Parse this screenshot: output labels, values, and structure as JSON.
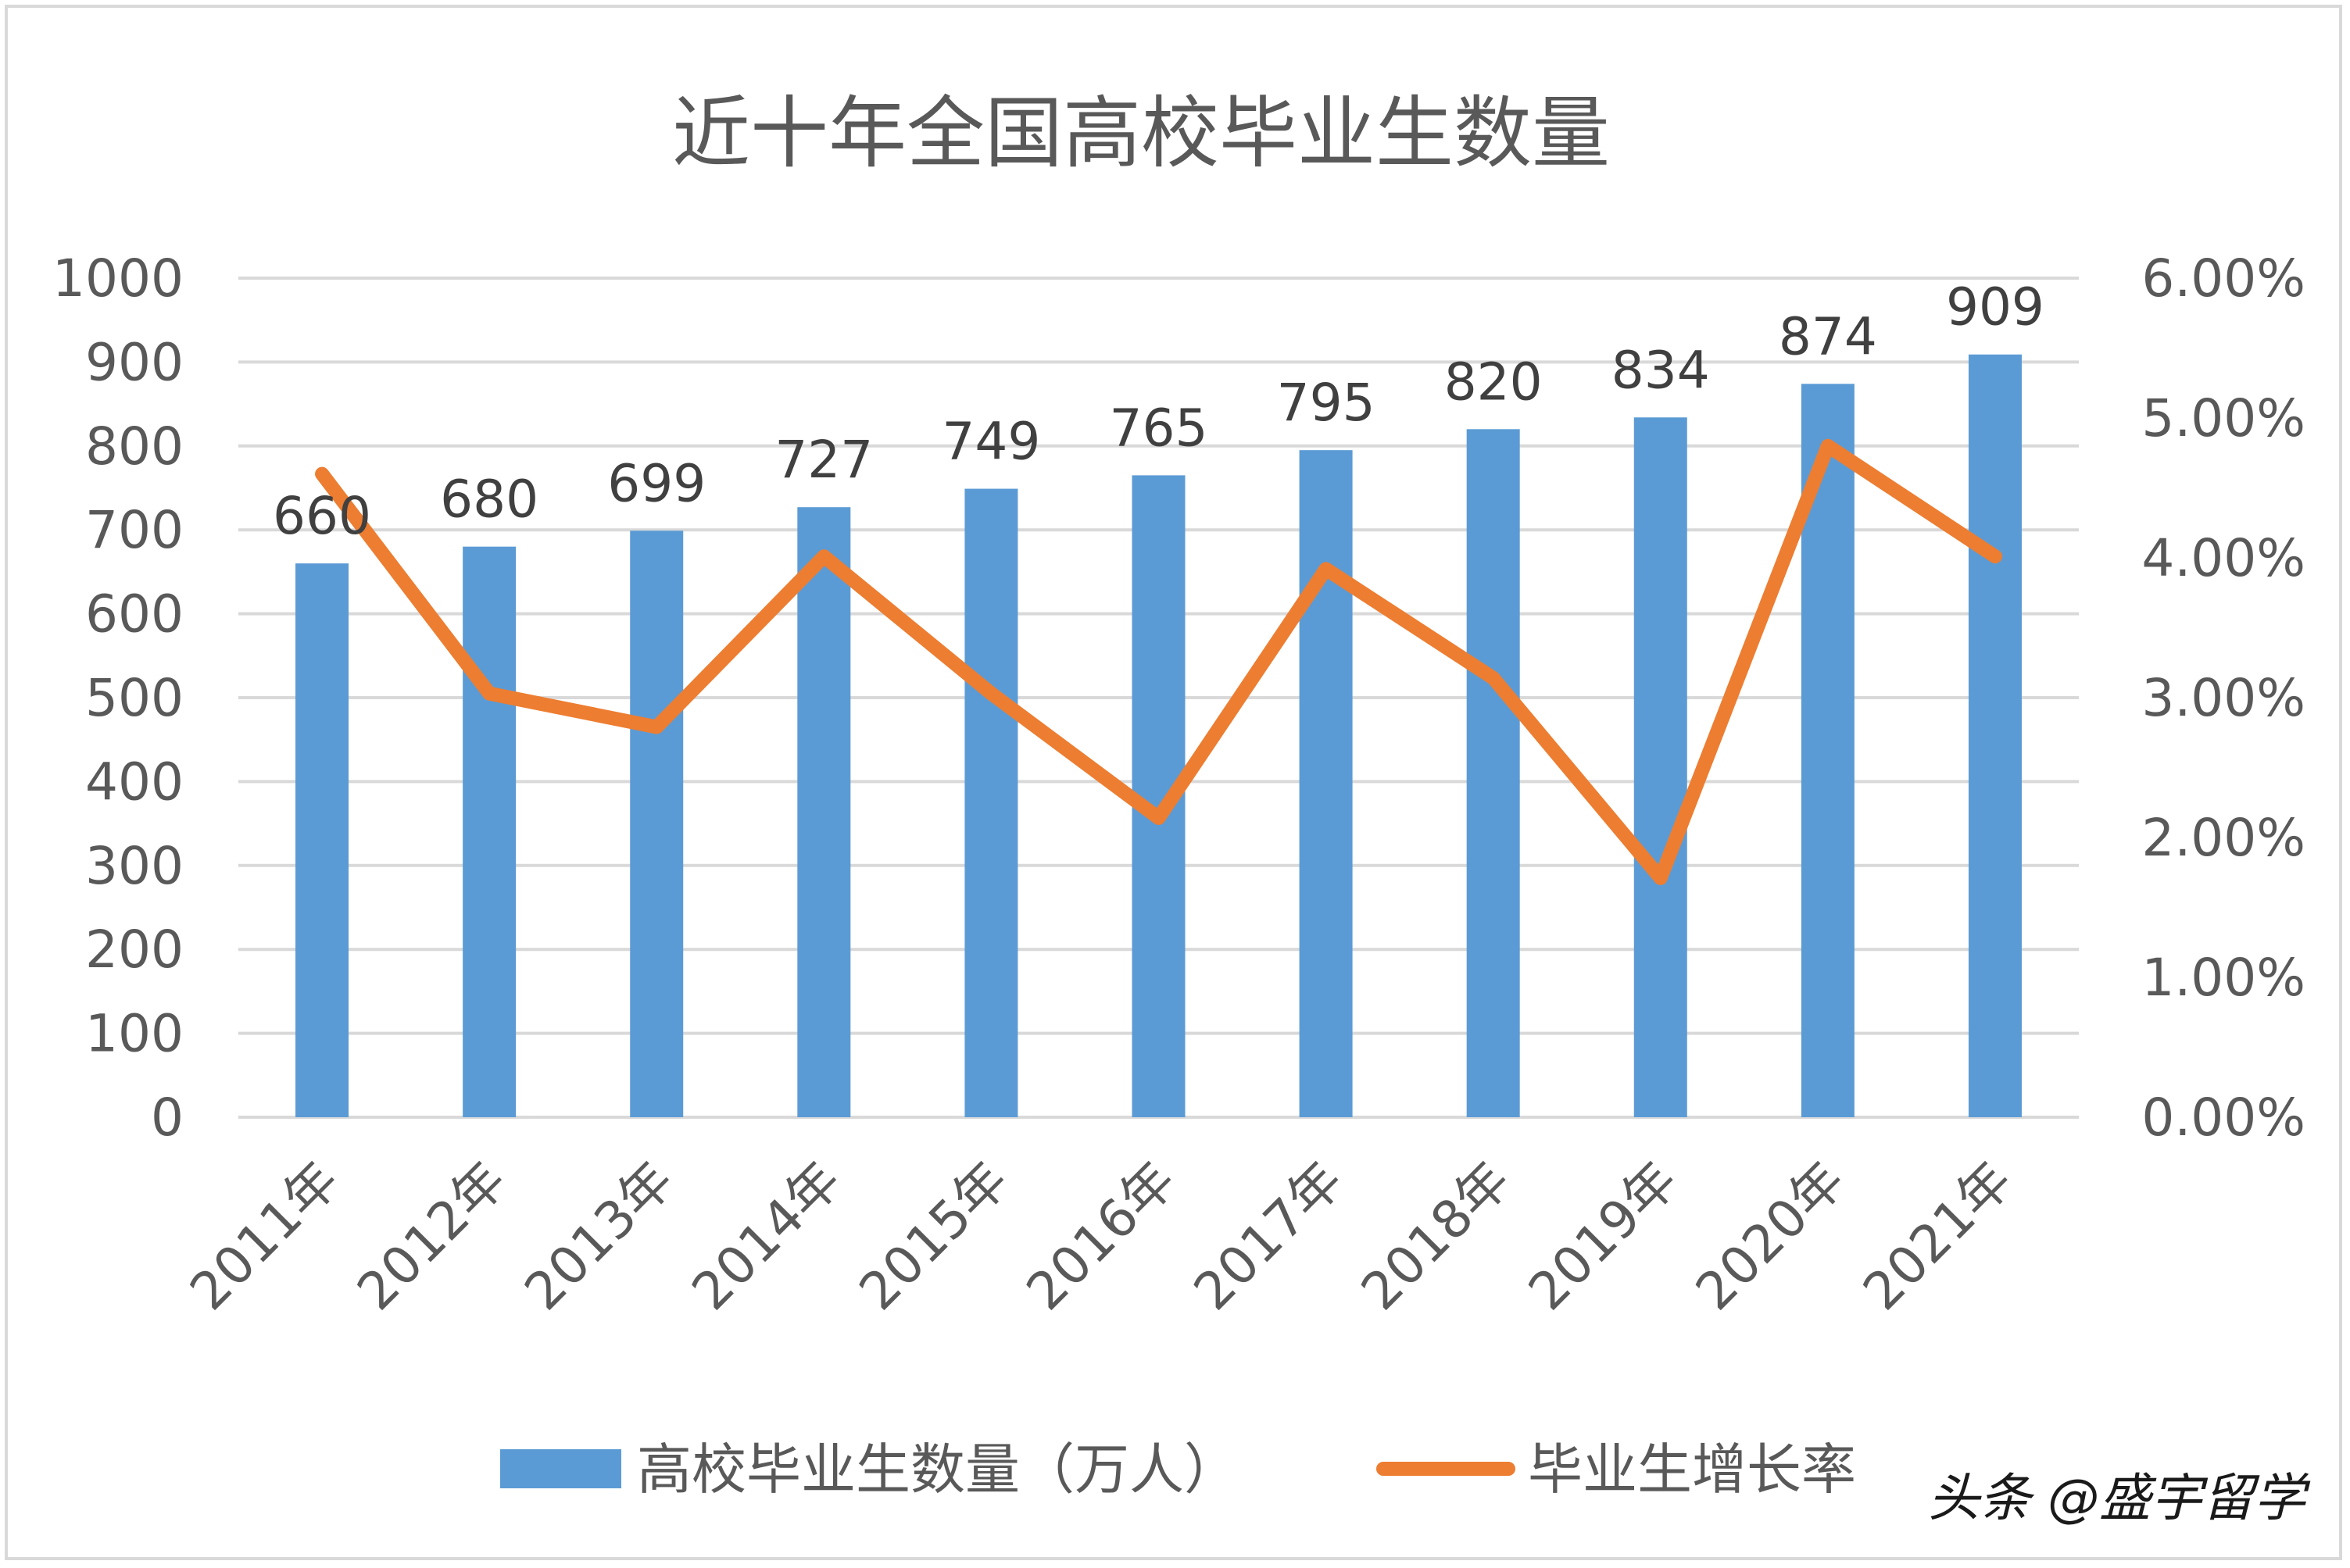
{
  "chart_data": {
    "type": "bar",
    "title": "近十年全国高校毕业生数量",
    "categories": [
      "2011年",
      "2012年",
      "2013年",
      "2014年",
      "2015年",
      "2016年",
      "2017年",
      "2018年",
      "2019年",
      "2020年",
      "2021年"
    ],
    "series": [
      {
        "name": "高校毕业生数量（万人）",
        "type": "bar",
        "axis": "left",
        "color": "#5b9bd5",
        "values": [
          660,
          680,
          699,
          727,
          749,
          765,
          795,
          820,
          834,
          874,
          909
        ],
        "data_labels": [
          "660",
          "680",
          "699",
          "727",
          "749",
          "765",
          "795",
          "820",
          "834",
          "874",
          "909"
        ]
      },
      {
        "name": "毕业生增长率",
        "type": "line",
        "axis": "right",
        "color": "#ed7d31",
        "values": [
          0.046,
          0.0303,
          0.0279,
          0.0401,
          0.0303,
          0.0214,
          0.0392,
          0.0314,
          0.0171,
          0.048,
          0.0401
        ]
      }
    ],
    "y_left": {
      "min": 0,
      "max": 1000,
      "step": 100,
      "tick_labels": [
        "0",
        "100",
        "200",
        "300",
        "400",
        "500",
        "600",
        "700",
        "800",
        "900",
        "1000"
      ]
    },
    "y_right": {
      "min": 0,
      "max": 0.06,
      "step": 0.01,
      "tick_labels": [
        "0.00%",
        "1.00%",
        "2.00%",
        "3.00%",
        "4.00%",
        "5.00%",
        "6.00%"
      ]
    },
    "grid": true,
    "legend_position": "bottom"
  },
  "watermark": "头条 @盛宇留学"
}
